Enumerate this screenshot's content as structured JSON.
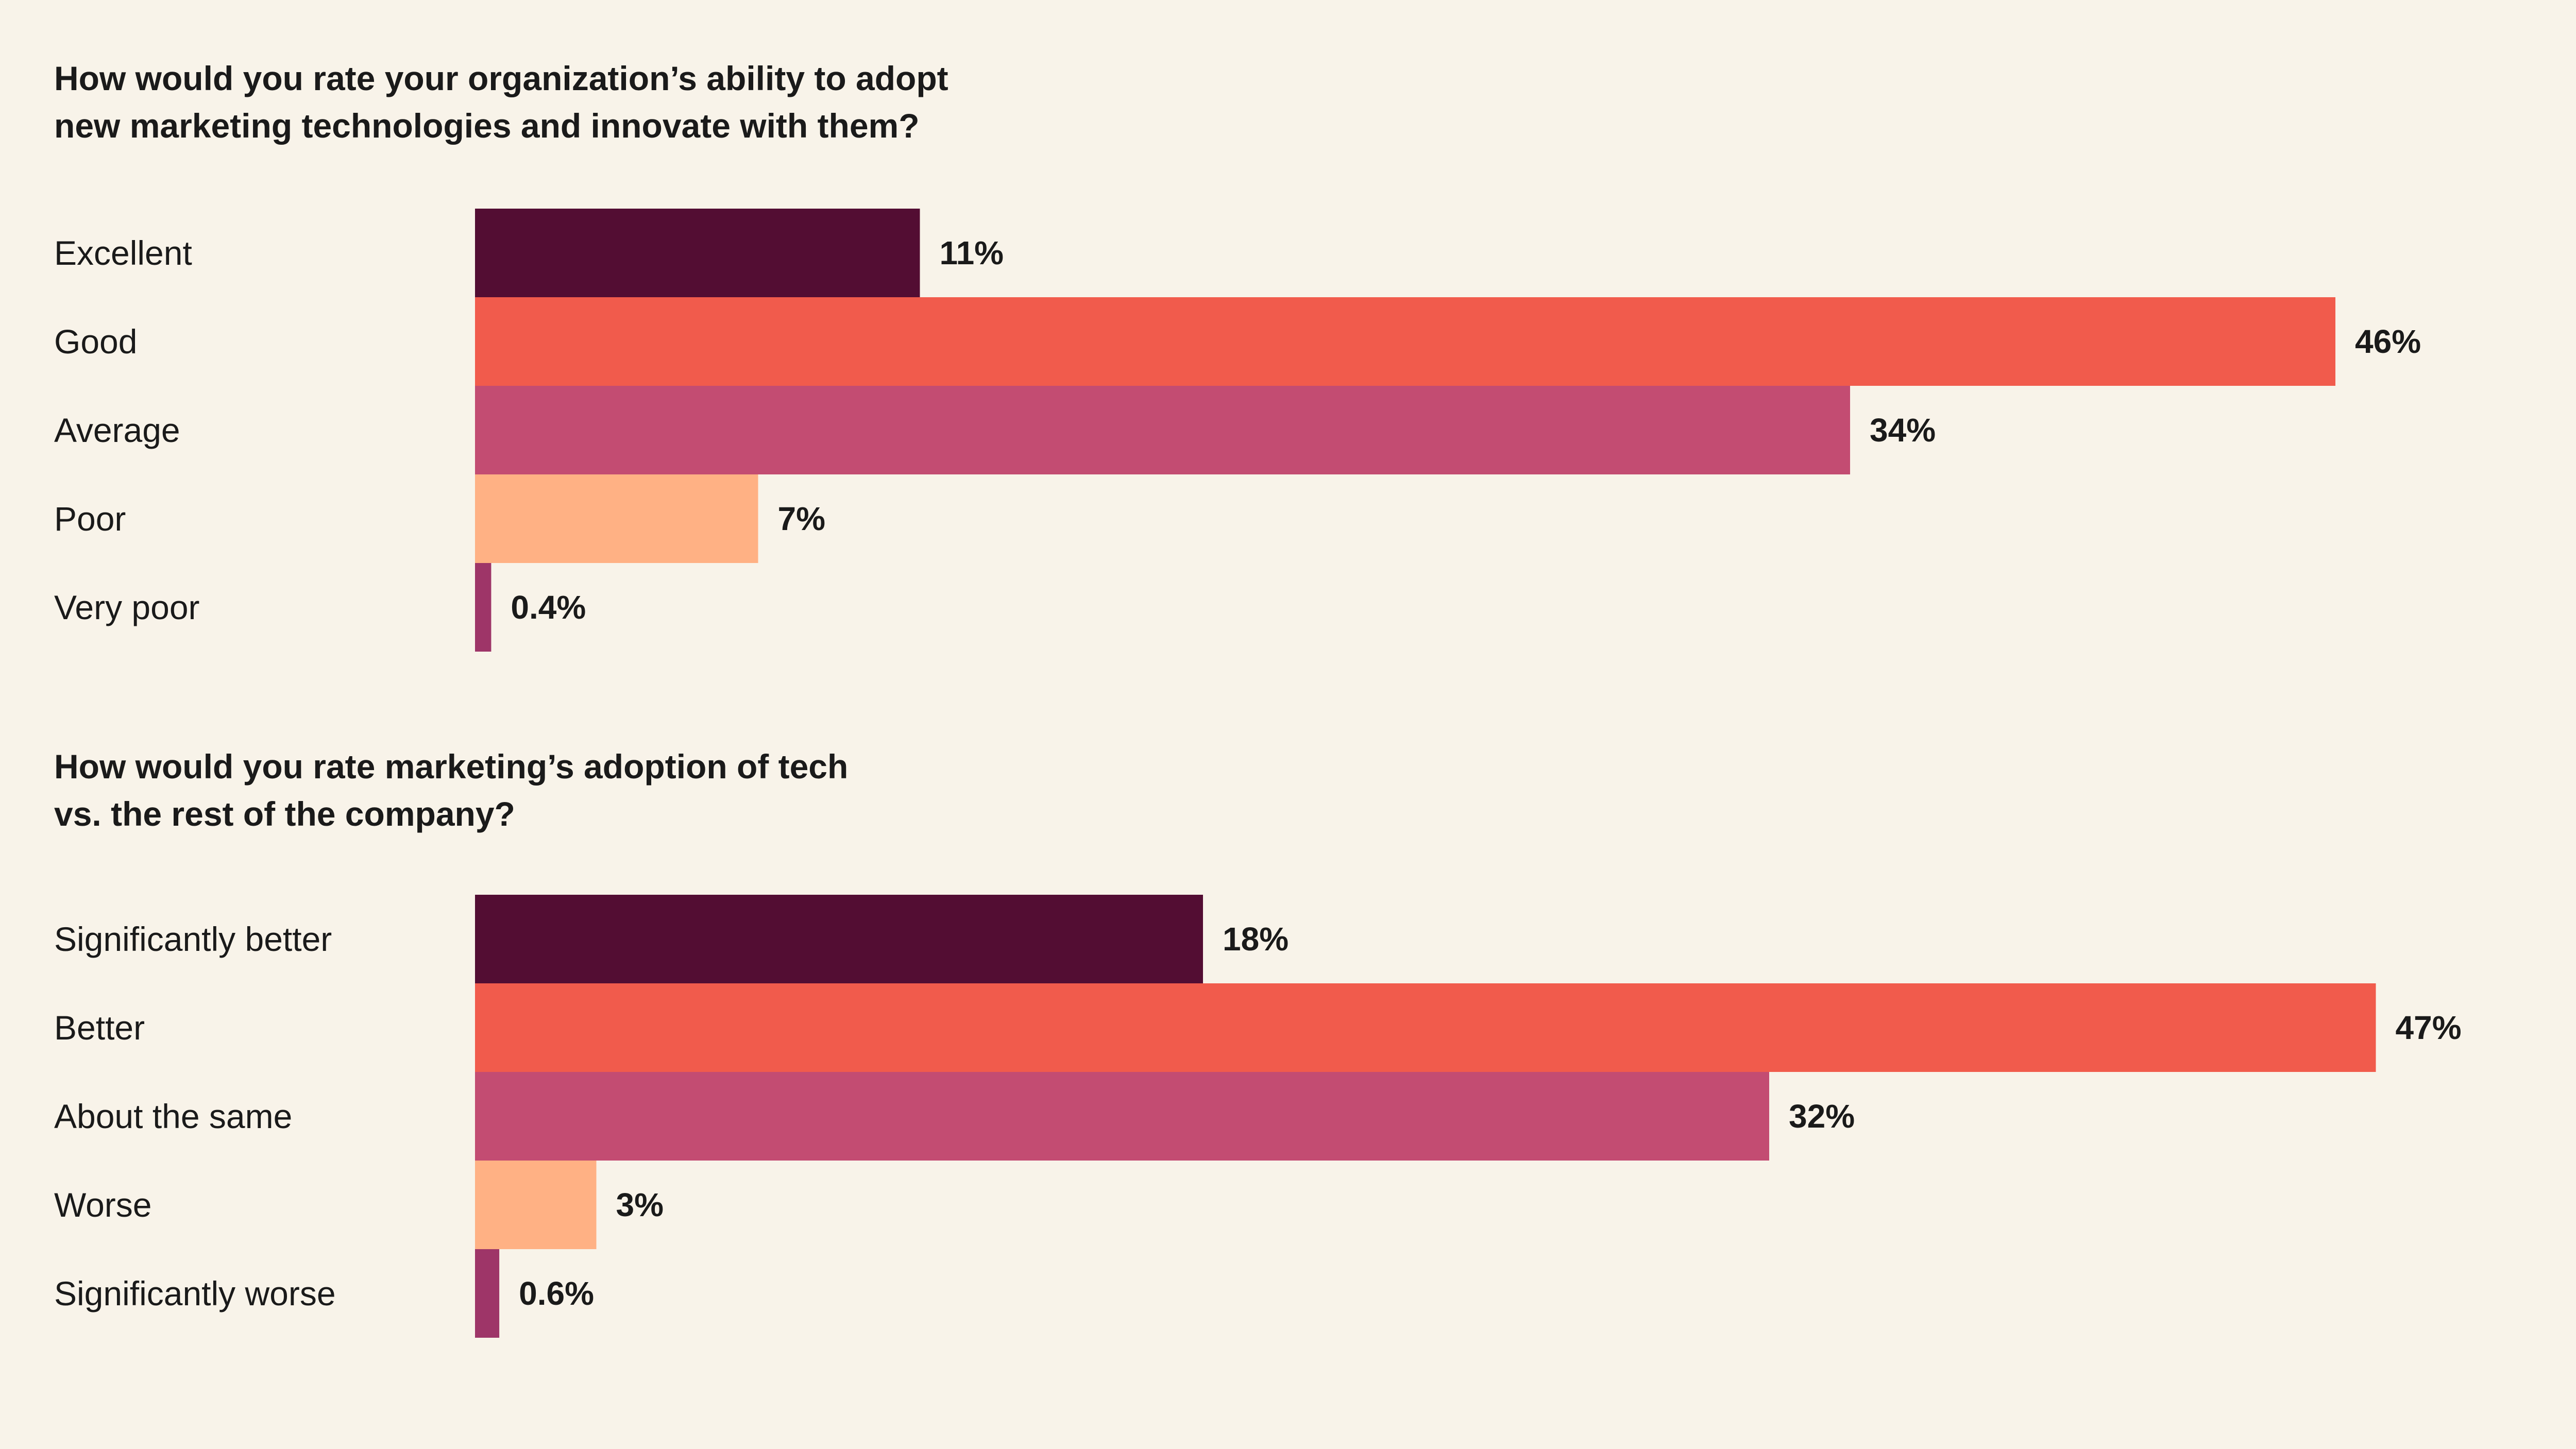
{
  "colors": {
    "background": "#F8F3E9",
    "bars": [
      "#530D33",
      "#F15B4C",
      "#C34C72",
      "#FFB184",
      "#9E3568"
    ]
  },
  "chart_data": [
    {
      "type": "bar",
      "orientation": "horizontal",
      "title_lines": [
        "How would you rate your organization’s ability to adopt",
        "new marketing technologies and innovate with them?"
      ],
      "categories": [
        "Excellent",
        "Good",
        "Average",
        "Poor",
        "Very poor"
      ],
      "values": [
        11,
        46,
        34,
        7,
        0.4
      ],
      "value_labels": [
        "11%",
        "46%",
        "34%",
        "7%",
        "0.4%"
      ],
      "unit": "%",
      "xlim": [
        0,
        50
      ],
      "grid": false,
      "legend": "none"
    },
    {
      "type": "bar",
      "orientation": "horizontal",
      "title_lines": [
        "How would you rate marketing’s adoption of tech",
        "vs. the rest of the company?"
      ],
      "categories": [
        "Significantly better",
        "Better",
        "About the same",
        "Worse",
        "Significantly worse"
      ],
      "values": [
        18,
        47,
        32,
        3,
        0.6
      ],
      "value_labels": [
        "18%",
        "47%",
        "32%",
        "3%",
        "0.6%"
      ],
      "unit": "%",
      "xlim": [
        0,
        50
      ],
      "grid": false,
      "legend": "none"
    }
  ]
}
